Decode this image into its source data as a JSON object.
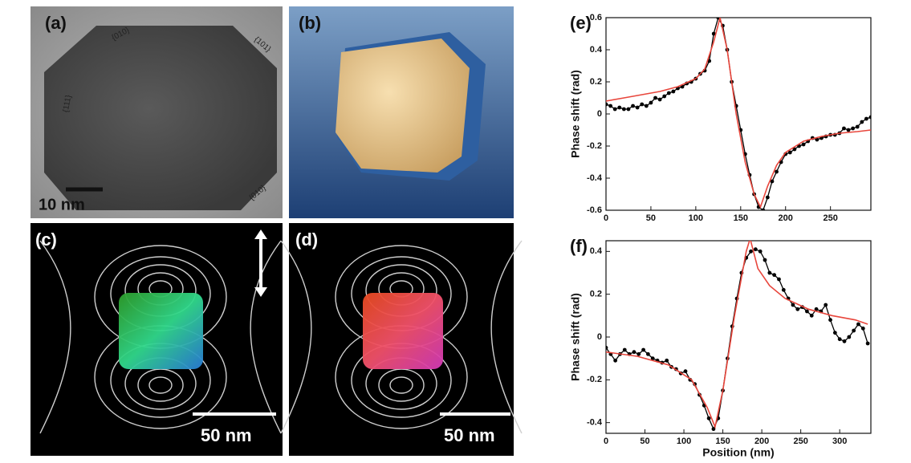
{
  "panels": [
    {
      "label": "(a)",
      "scale_bar": "10 nm",
      "facet_labels": [
        "{010}",
        "{101}",
        "{111}",
        "{010}"
      ]
    },
    {
      "label": "(b)"
    },
    {
      "label": "(c)",
      "scale_bar": "50 nm"
    },
    {
      "label": "(d)",
      "scale_bar": "50 nm"
    }
  ],
  "chart_data": [
    {
      "type": "line",
      "label": "(e)",
      "ylabel": "Phase shift (rad)",
      "xlim": [
        0,
        295
      ],
      "ylim": [
        -0.6,
        0.6
      ],
      "xticks": [
        0,
        50,
        100,
        150,
        200,
        250
      ],
      "yticks": [
        -0.6,
        -0.4,
        -0.2,
        0,
        0.2,
        0.4,
        0.6
      ],
      "series": [
        {
          "color": "#000000",
          "markers": true,
          "x": [
            0,
            5,
            10,
            15,
            20,
            25,
            30,
            35,
            40,
            45,
            50,
            55,
            60,
            65,
            70,
            75,
            80,
            85,
            90,
            95,
            100,
            105,
            110,
            115,
            120,
            125,
            130,
            135,
            140,
            145,
            150,
            155,
            160,
            165,
            170,
            175,
            180,
            185,
            190,
            195,
            200,
            205,
            210,
            215,
            220,
            225,
            230,
            235,
            240,
            245,
            250,
            255,
            260,
            265,
            270,
            275,
            280,
            285,
            290,
            295
          ],
          "values": [
            0.06,
            0.05,
            0.03,
            0.04,
            0.03,
            0.03,
            0.05,
            0.04,
            0.06,
            0.05,
            0.07,
            0.1,
            0.09,
            0.11,
            0.13,
            0.14,
            0.16,
            0.17,
            0.19,
            0.2,
            0.22,
            0.25,
            0.27,
            0.33,
            0.5,
            0.6,
            0.55,
            0.4,
            0.2,
            0.05,
            -0.1,
            -0.25,
            -0.38,
            -0.5,
            -0.58,
            -0.6,
            -0.52,
            -0.42,
            -0.36,
            -0.3,
            -0.25,
            -0.24,
            -0.22,
            -0.2,
            -0.19,
            -0.17,
            -0.15,
            -0.16,
            -0.15,
            -0.14,
            -0.13,
            -0.13,
            -0.12,
            -0.09,
            -0.1,
            -0.09,
            -0.08,
            -0.05,
            -0.03,
            -0.02
          ]
        },
        {
          "color": "#e8463c",
          "markers": false,
          "x": [
            0,
            20,
            40,
            60,
            80,
            100,
            110,
            120,
            127,
            135,
            145,
            155,
            165,
            172,
            180,
            190,
            200,
            220,
            240,
            260,
            280,
            295
          ],
          "values": [
            0.08,
            0.1,
            0.12,
            0.14,
            0.17,
            0.22,
            0.28,
            0.45,
            0.6,
            0.4,
            0,
            -0.3,
            -0.5,
            -0.58,
            -0.45,
            -0.32,
            -0.24,
            -0.17,
            -0.14,
            -0.12,
            -0.11,
            -0.1
          ]
        }
      ]
    },
    {
      "type": "line",
      "label": "(f)",
      "ylabel": "Phase shift (rad)",
      "xlabel": "Position (nm)",
      "xlim": [
        0,
        340
      ],
      "ylim": [
        -0.45,
        0.45
      ],
      "xticks": [
        0,
        50,
        100,
        150,
        200,
        250,
        300
      ],
      "yticks": [
        -0.4,
        -0.2,
        0,
        0.2,
        0.4
      ],
      "series": [
        {
          "color": "#000000",
          "markers": true,
          "x": [
            0,
            6,
            12,
            18,
            24,
            30,
            36,
            42,
            48,
            54,
            60,
            66,
            72,
            78,
            84,
            90,
            96,
            102,
            108,
            114,
            120,
            126,
            132,
            138,
            144,
            150,
            156,
            162,
            168,
            174,
            180,
            186,
            192,
            198,
            204,
            210,
            216,
            222,
            228,
            234,
            240,
            246,
            252,
            258,
            264,
            270,
            276,
            282,
            288,
            294,
            300,
            306,
            312,
            318,
            324,
            330,
            336
          ],
          "values": [
            -0.05,
            -0.08,
            -0.11,
            -0.08,
            -0.06,
            -0.08,
            -0.07,
            -0.08,
            -0.06,
            -0.08,
            -0.1,
            -0.11,
            -0.12,
            -0.11,
            -0.14,
            -0.15,
            -0.17,
            -0.16,
            -0.2,
            -0.22,
            -0.27,
            -0.32,
            -0.38,
            -0.43,
            -0.38,
            -0.25,
            -0.1,
            0.05,
            0.18,
            0.3,
            0.37,
            0.4,
            0.41,
            0.4,
            0.36,
            0.3,
            0.29,
            0.27,
            0.22,
            0.18,
            0.15,
            0.13,
            0.14,
            0.12,
            0.1,
            0.13,
            0.12,
            0.15,
            0.08,
            0.02,
            -0.01,
            -0.02,
            0,
            0.03,
            0.06,
            0.04,
            -0.03
          ]
        },
        {
          "color": "#e8463c",
          "markers": false,
          "x": [
            0,
            40,
            80,
            110,
            130,
            140,
            150,
            165,
            180,
            185,
            195,
            210,
            230,
            260,
            290,
            320,
            336
          ],
          "values": [
            -0.07,
            -0.09,
            -0.13,
            -0.2,
            -0.33,
            -0.42,
            -0.25,
            0.1,
            0.4,
            0.46,
            0.32,
            0.24,
            0.18,
            0.13,
            0.1,
            0.08,
            0.06
          ]
        }
      ]
    }
  ]
}
